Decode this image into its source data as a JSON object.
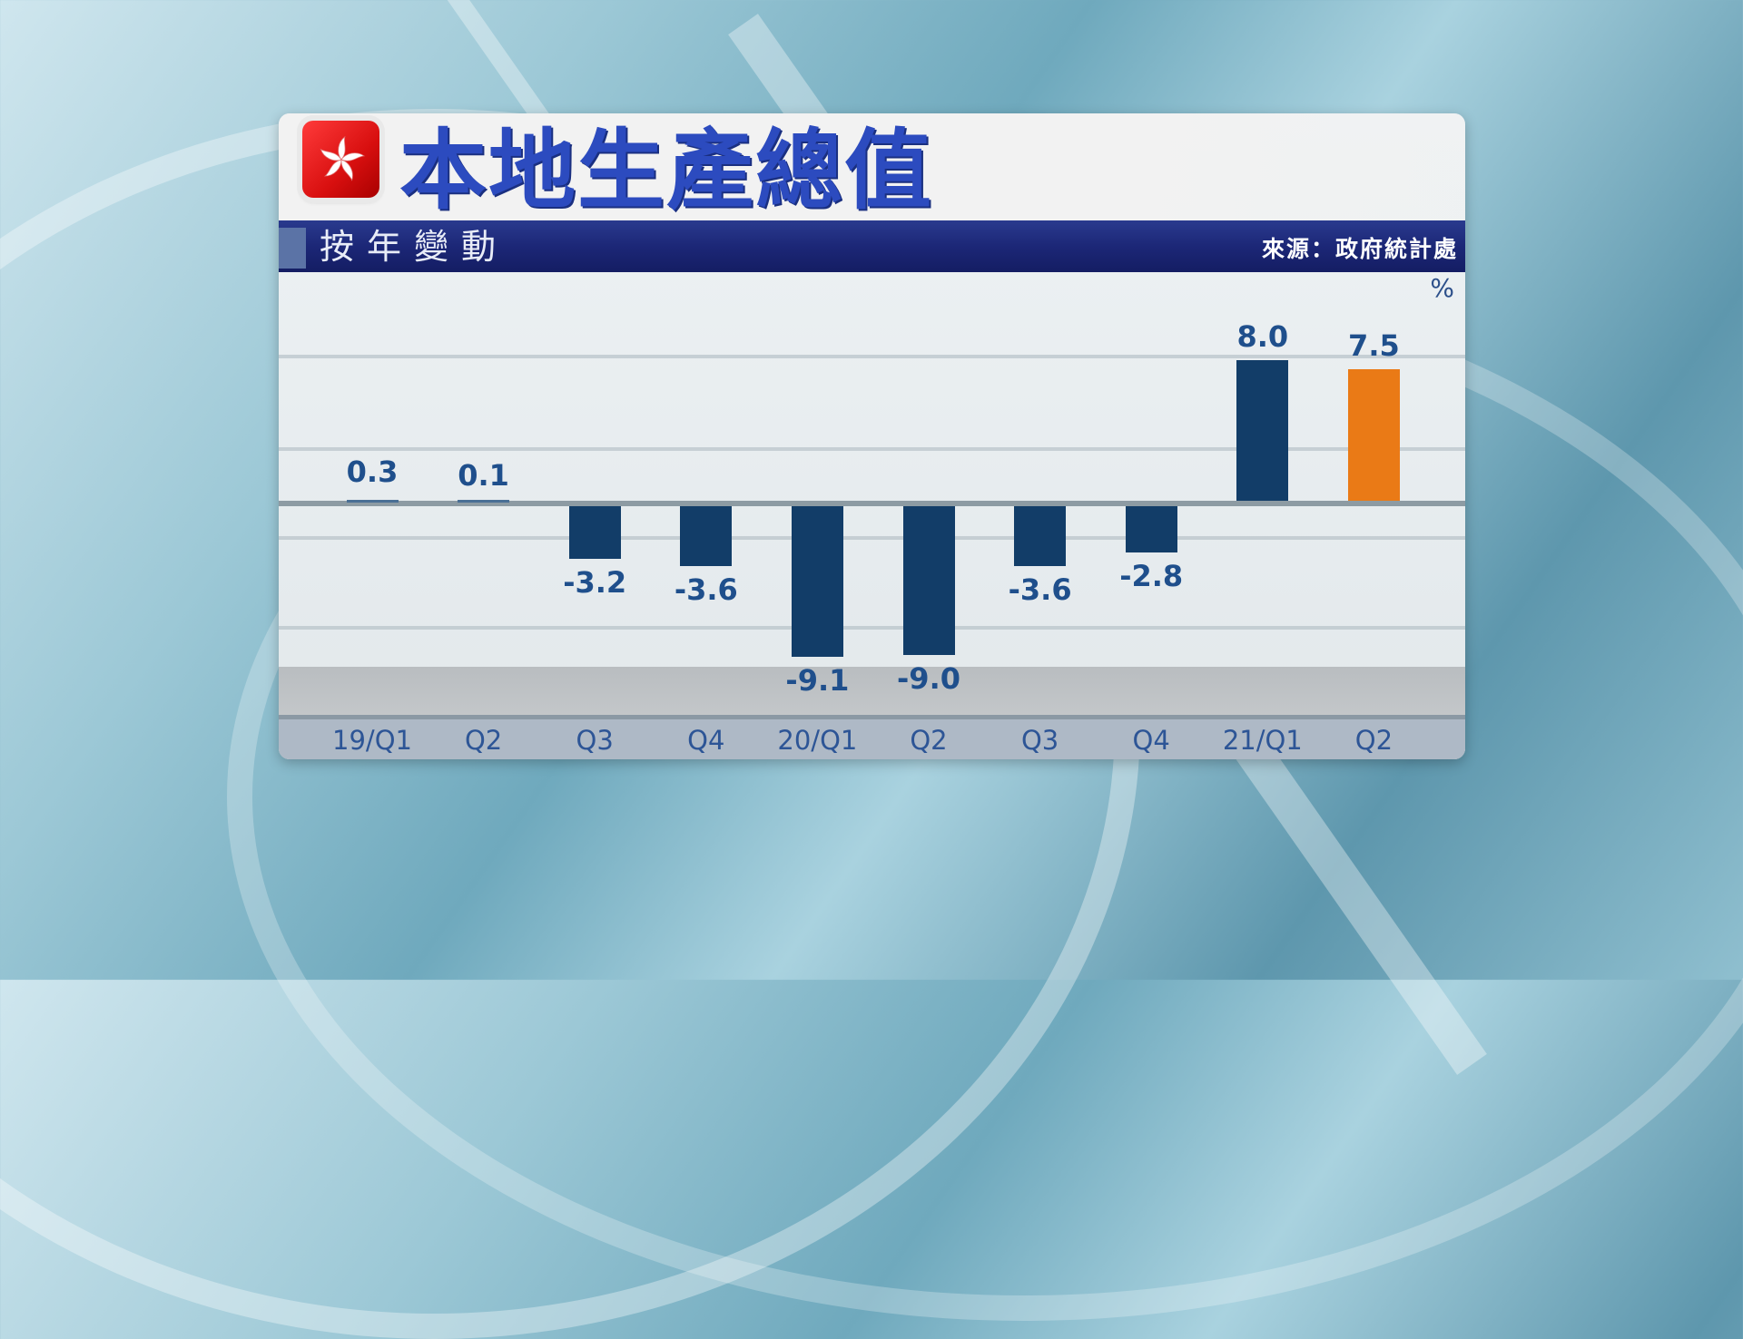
{
  "header": {
    "title": "本地生產總值",
    "subtitle": "按年變動",
    "source": "來源：政府統計處",
    "unit": "%",
    "flag_icon": "hong-kong-bauhinia-flag-icon"
  },
  "colors": {
    "title": "#2c4bbf",
    "bar": "#123d68",
    "highlight_bar": "#ea7a16",
    "subtitle_bar": "#1c2777",
    "value_label": "#1f4f8c"
  },
  "chart_data": {
    "type": "bar",
    "title": "本地生產總值",
    "subtitle": "按年變動",
    "source": "來源：政府統計處",
    "categories": [
      "19/Q1",
      "Q2",
      "Q3",
      "Q4",
      "20/Q1",
      "Q2",
      "Q3",
      "Q4",
      "21/Q1",
      "Q2"
    ],
    "values": [
      0.3,
      0.1,
      -3.2,
      -3.6,
      -9.1,
      -9.0,
      -3.6,
      -2.8,
      8.0,
      7.5
    ],
    "labels": [
      "0.3",
      "0.1",
      "-3.2",
      "-3.6",
      "-9.1",
      "-9.0",
      "-3.6",
      "-2.8",
      "8.0",
      "7.5"
    ],
    "highlight_index": 9,
    "xlabel": "",
    "ylabel": "%",
    "ylim": [
      -10,
      10
    ],
    "grid": true,
    "legend": null
  }
}
